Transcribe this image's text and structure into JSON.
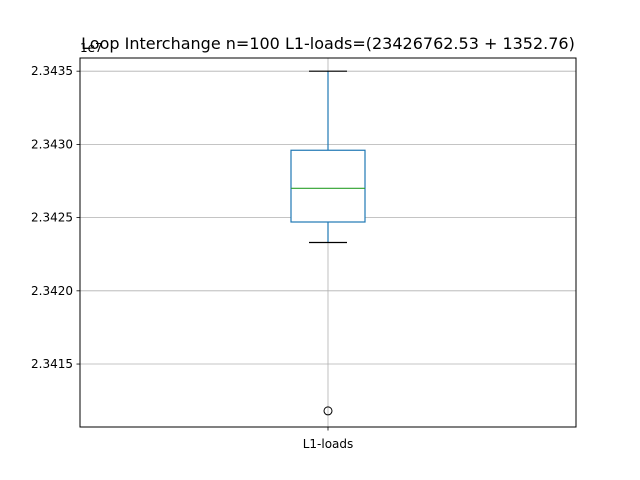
{
  "chart_data": {
    "type": "box",
    "title": "Loop Interchange n=100  L1-loads=(23426762.53 + 1352.76)",
    "xlabel": "",
    "ylabel": "",
    "y_offset_label": "1e7",
    "categories": [
      "L1-loads"
    ],
    "ylim": [
      2.34107,
      2.34359
    ],
    "yticks": [
      2.3415,
      2.342,
      2.3425,
      2.343,
      2.3435
    ],
    "ytick_labels": [
      "2.3415",
      "2.3420",
      "2.3425",
      "2.3430",
      "2.3435"
    ],
    "grid": true,
    "box": {
      "whisker_low": 2.34233,
      "q1": 2.34247,
      "median": 2.3427,
      "q3": 2.34296,
      "whisker_high": 2.3435,
      "outliers": [
        2.34118
      ]
    },
    "colors": {
      "box": "#1f77b4",
      "median": "#2ca02c",
      "whisker_cap": "#000000",
      "grid": "#b0b0b0",
      "outlier_edge": "#000000"
    }
  }
}
